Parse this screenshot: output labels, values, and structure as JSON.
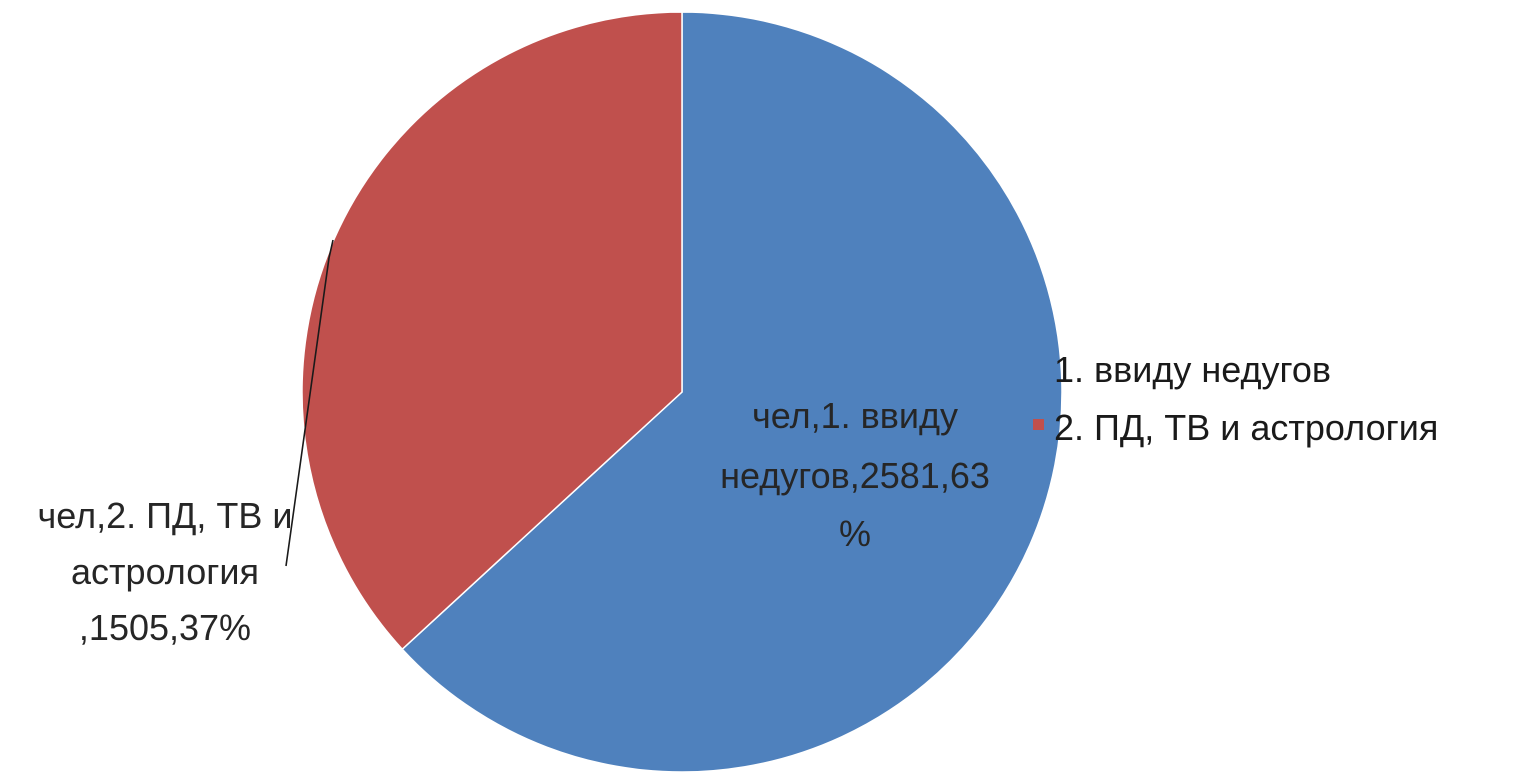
{
  "chart_data": {
    "type": "pie",
    "categories": [
      "1. ввиду недугов",
      "2. ПД, ТВ и астрология"
    ],
    "series": [
      {
        "values": [
          2581,
          1505
        ],
        "percents": [
          63,
          37
        ]
      }
    ],
    "colors": [
      "#4f81bd",
      "#c0504d"
    ],
    "slice_border": "#ffffff",
    "start_angle_deg": 0,
    "direction": "clockwise",
    "data_labels": [
      [
        "чел,1. ввиду",
        "недугов,2581,63",
        "%"
      ],
      [
        "чел,2. ПД, ТВ и",
        "астрология",
        ",1505,37%"
      ]
    ],
    "legend": {
      "placement": "right",
      "entries": [
        "1. ввиду недугов",
        "2. ПД, ТВ и астрология"
      ]
    }
  }
}
